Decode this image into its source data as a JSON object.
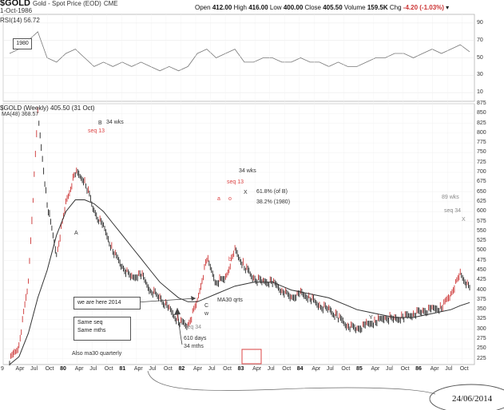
{
  "header": {
    "symbol": "$GOLD",
    "name": "Gold - Spot Price (EOD)",
    "exchange": "CME",
    "date": "1-Oct-1986",
    "open_label": "Open",
    "open": "412.00",
    "high_label": "High",
    "high": "416.00",
    "low_label": "Low",
    "low": "400.00",
    "close_label": "Close",
    "close": "405.50",
    "volume_label": "Volume",
    "volume": "159.5K",
    "chg_label": "Chg",
    "chg": "-4.20 (-1.03%)"
  },
  "rsi_panel": {
    "label": "RSI(14) 56.72",
    "box_label": "1980",
    "ticks": [
      "90",
      "70",
      "50",
      "30",
      "10"
    ]
  },
  "main_panel": {
    "label": "$GOLD (Weekly) 405.50 (31 Oct)",
    "ma_label": "MA(48) 368.57"
  },
  "annotations": {
    "B": "B",
    "B_wks": "34 wks",
    "B_seq": "seq 13",
    "A": "A",
    "wks34_mid": "34 wks",
    "seq13_mid": "seq 13",
    "a": "a",
    "o": "o",
    "X1": "X",
    "fib1": "61.8% (of B)",
    "fib2": "38.2% (1980)",
    "b": "b",
    "C": "C",
    "w": "w",
    "ma30": "MA30 qrts",
    "here": "we are here 2014",
    "same1": "Same seq",
    "same2": "Same mths",
    "also": "Also ma30 quarterly",
    "seq34_low": "seq 34",
    "days": "610 days",
    "mths": "34 mths",
    "Y": "Y",
    "wks89": "89 wks",
    "seq34": "seq 34",
    "X2": "X",
    "handwritten_date": "24/06/2014"
  },
  "x_axis": {
    "months": [
      "9",
      "Apr",
      "Jul",
      "Oct",
      "80",
      "Apr",
      "Jul",
      "Oct",
      "81",
      "Apr",
      "Jul",
      "Oct",
      "82",
      "Apr",
      "Jul",
      "Oct",
      "83",
      "Apr",
      "Jul",
      "Oct",
      "84",
      "Apr",
      "Jul",
      "Oct",
      "85",
      "Apr",
      "Jul",
      "Oct",
      "86",
      "Apr",
      "Jul",
      "Oct"
    ],
    "year_marks": [
      "80",
      "81",
      "82",
      "83",
      "84",
      "85",
      "86"
    ]
  },
  "chart_data": {
    "type": "line",
    "title": "$GOLD (Weekly) 405.50 (31 Oct)",
    "ylim": [
      210,
      875
    ],
    "y_ticks": [
      875,
      850,
      825,
      800,
      775,
      750,
      725,
      700,
      675,
      650,
      625,
      600,
      575,
      550,
      525,
      500,
      475,
      450,
      425,
      400,
      375,
      350,
      325,
      300,
      275,
      250,
      225
    ],
    "x": [
      "1979-10",
      "1979-12",
      "1980-01",
      "1980-02",
      "1980-03",
      "1980-05",
      "1980-07",
      "1980-09",
      "1980-10",
      "1980-12",
      "1981-02",
      "1981-04",
      "1981-06",
      "1981-08",
      "1981-10",
      "1981-12",
      "1982-02",
      "1982-04",
      "1982-06",
      "1982-07",
      "1982-08",
      "1982-09",
      "1982-10",
      "1982-12",
      "1983-02",
      "1983-03",
      "1983-05",
      "1983-07",
      "1983-09",
      "1983-11",
      "1984-01",
      "1984-03",
      "1984-05",
      "1984-07",
      "1984-09",
      "1984-11",
      "1985-01",
      "1985-02",
      "1985-03",
      "1985-05",
      "1985-07",
      "1985-09",
      "1985-11",
      "1986-01",
      "1986-03",
      "1986-05",
      "1986-07",
      "1986-08",
      "1986-09",
      "1986-10"
    ],
    "series": [
      {
        "name": "$GOLD",
        "values": [
          220,
          260,
          420,
          850,
          620,
          490,
          620,
          700,
          680,
          600,
          560,
          500,
          460,
          430,
          440,
          400,
          380,
          350,
          320,
          310,
          370,
          480,
          420,
          430,
          500,
          460,
          430,
          420,
          420,
          400,
          380,
          390,
          380,
          360,
          350,
          330,
          310,
          300,
          310,
          320,
          330,
          325,
          330,
          340,
          345,
          350,
          355,
          390,
          440,
          405
        ]
      },
      {
        "name": "MA(48)",
        "values": [
          210,
          230,
          290,
          380,
          450,
          540,
          600,
          630,
          630,
          620,
          600,
          570,
          540,
          510,
          480,
          450,
          420,
          400,
          380,
          370,
          370,
          380,
          390,
          400,
          410,
          415,
          420,
          420,
          420,
          410,
          400,
          395,
          390,
          385,
          380,
          370,
          360,
          350,
          345,
          340,
          335,
          330,
          330,
          330,
          335,
          340,
          345,
          350,
          360,
          368
        ]
      }
    ],
    "rsi": {
      "name": "RSI(14)",
      "ylim": [
        0,
        100
      ],
      "values": [
        55,
        60,
        70,
        80,
        50,
        45,
        55,
        60,
        50,
        40,
        45,
        40,
        45,
        40,
        45,
        40,
        35,
        40,
        35,
        40,
        55,
        60,
        50,
        55,
        60,
        45,
        45,
        50,
        50,
        45,
        45,
        50,
        45,
        45,
        40,
        45,
        40,
        40,
        45,
        50,
        50,
        55,
        55,
        50,
        55,
        60,
        55,
        60,
        65,
        57
      ]
    },
    "colors": {
      "price": "#222222",
      "ma": "#333333",
      "accent": "#dd4444",
      "up": "#cc3333"
    }
  }
}
